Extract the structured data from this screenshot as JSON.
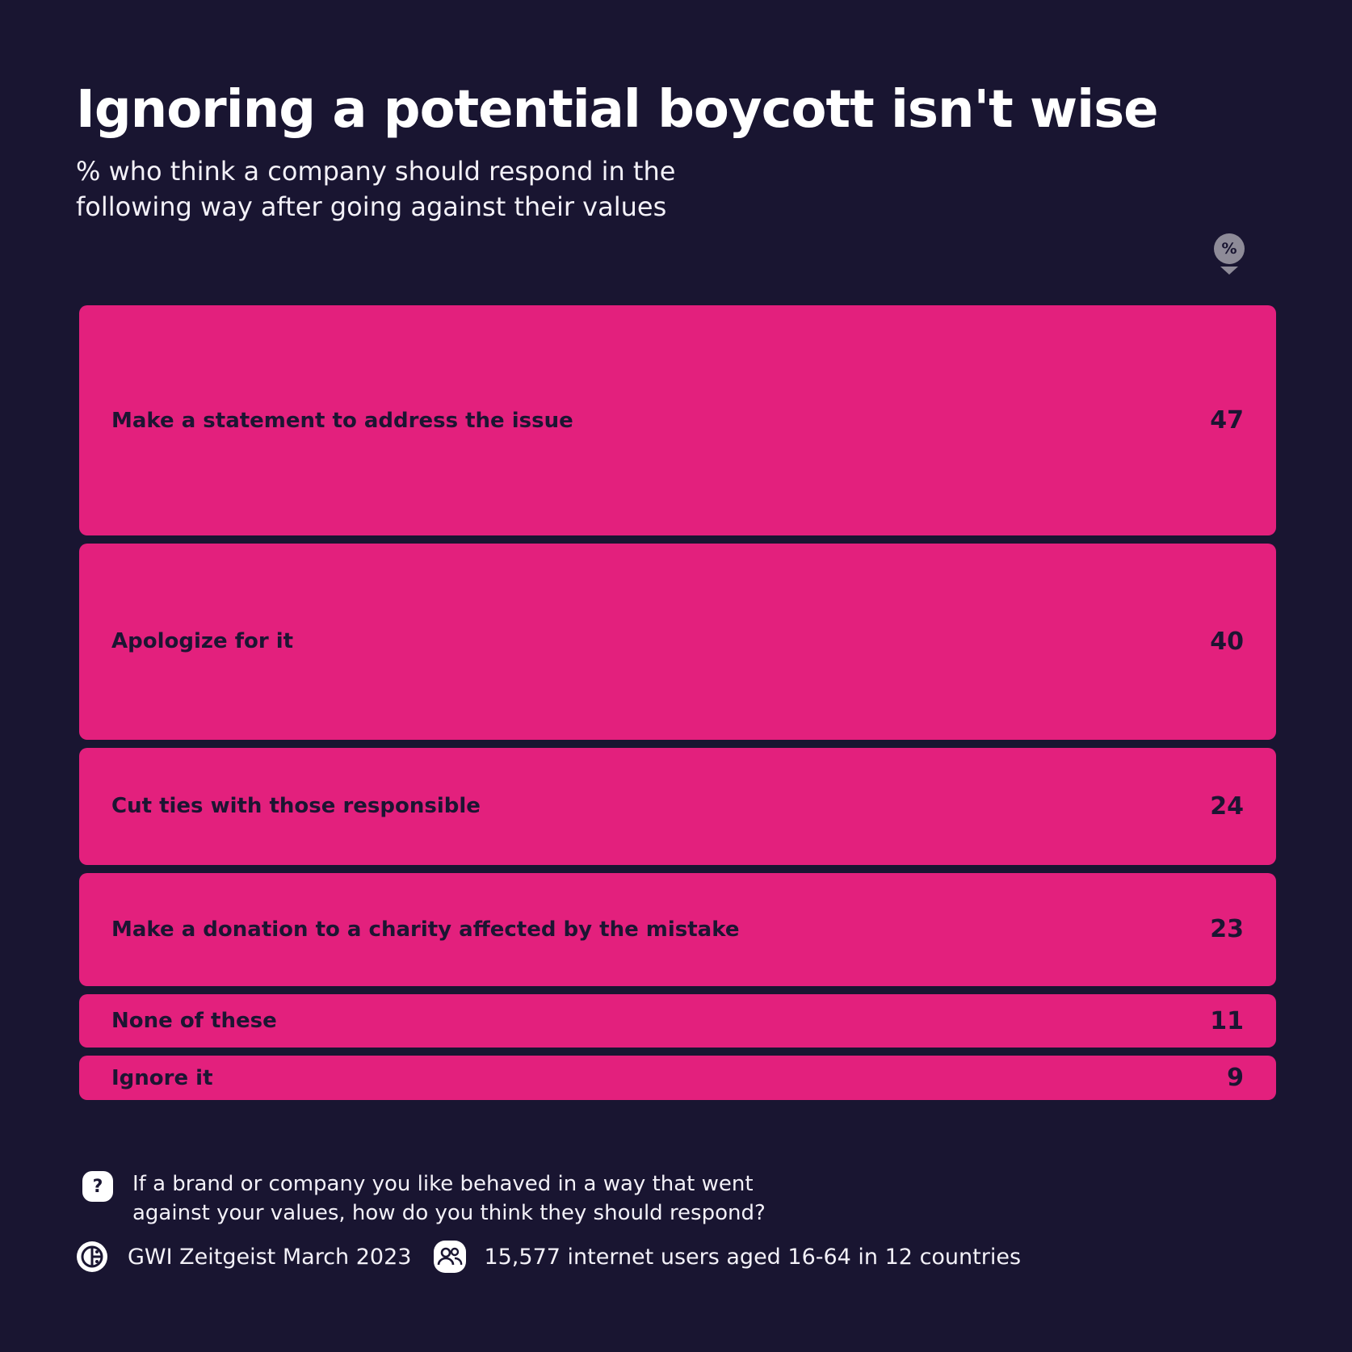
{
  "title": "Ignoring a potential boycott isn't wise",
  "subtitle": "% who think a company should respond in the following way after going against their values",
  "unit_badge": "%",
  "colors": {
    "background": "#191531",
    "bar": "#e3207d",
    "bar_text": "#1c1532",
    "text": "#ffffff"
  },
  "chart_data": {
    "type": "bar",
    "orientation": "horizontal",
    "title": "Ignoring a potential boycott isn't wise",
    "subtitle": "% who think a company should respond in the following way after going against their values",
    "unit": "%",
    "categories": [
      "Make a statement to address the issue",
      "Apologize for it",
      "Cut ties with those responsible",
      "Make a donation to a charity affected by the mistake",
      "None of these",
      "Ignore it"
    ],
    "values": [
      47,
      40,
      24,
      23,
      11,
      9
    ],
    "encoding": "bar thickness proportional to value"
  },
  "footer": {
    "question_icon": "question-icon",
    "question": "If a brand or company you like behaved in a way that went against your values, how do you think they should respond?",
    "source_icon": "gwi-logo-icon",
    "source": "GWI Zeitgeist March 2023",
    "sample_icon": "users-icon",
    "sample": "15,577 internet users aged 16-64 in 12 countries"
  }
}
